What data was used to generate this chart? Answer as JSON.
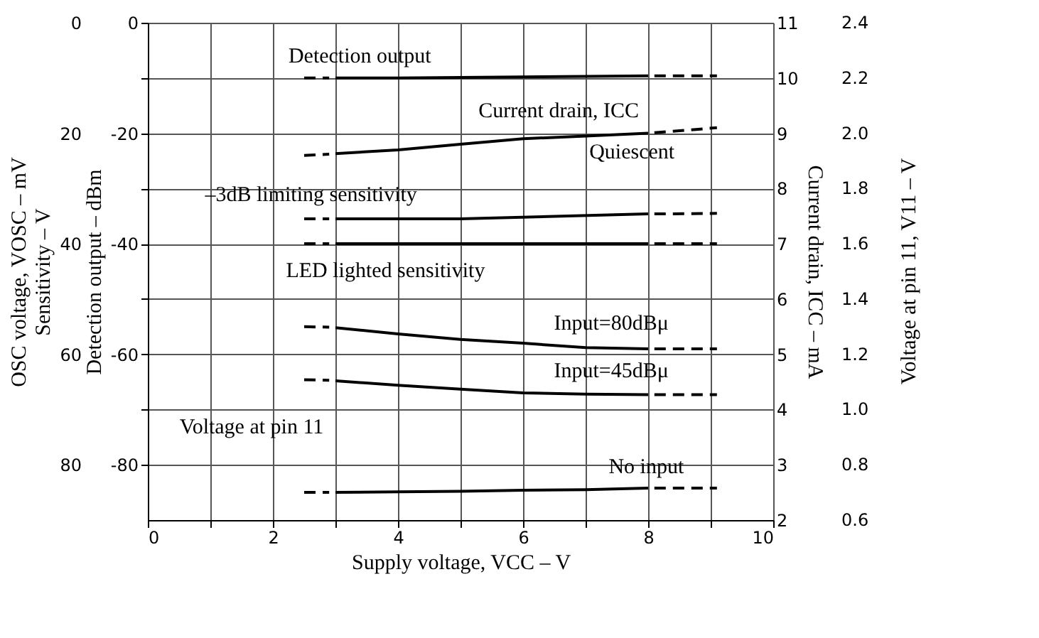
{
  "chart_data": {
    "type": "line",
    "xlabel": "Supply voltage, VCC – V",
    "ylabel": "Detection output – dBm",
    "y2label": "Current drain, ICC – mA",
    "y3label": "OSC voltage, VOSC – mV",
    "xlim": [
      0,
      10
    ],
    "xticks": [
      0,
      {
        "value": 1,
        "label": null
      },
      2,
      {
        "value": 3,
        "label": null
      },
      4,
      {
        "value": 5,
        "label": null
      },
      6,
      {
        "value": 7,
        "label": null
      },
      8,
      {
        "value": 9,
        "label": null
      },
      10
    ],
    "ylim": [
      -90,
      0
    ],
    "yticks": [
      0,
      {
        "value": -10,
        "label": null
      },
      -20,
      {
        "value": -30,
        "label": null
      },
      -40,
      {
        "value": -50,
        "label": null
      },
      -60,
      {
        "value": -70,
        "label": null
      },
      -80
    ],
    "y2lim": [
      2,
      11
    ],
    "y2ticks": [
      2,
      3,
      4,
      5,
      6,
      7,
      8,
      9,
      10,
      11
    ],
    "y3lim": [
      90,
      0
    ],
    "y3ticks": [
      0,
      20,
      40,
      60,
      80
    ],
    "grid": true,
    "series": [
      {
        "color": "#000000",
        "line_style": "solid",
        "x": [
          3,
          4,
          5,
          6,
          7,
          8
        ],
        "values": [
          -10,
          -10,
          -9.9,
          -9.8,
          -9.7,
          -9.6
        ]
      },
      {
        "color": "#000000",
        "line_style": "dashed",
        "x": [
          2.5,
          2.9
        ],
        "values": [
          -10,
          -10
        ]
      },
      {
        "color": "#000000",
        "line_style": "dashed",
        "x": [
          8.1,
          9.1
        ],
        "values": [
          -9.6,
          -9.6
        ]
      },
      {
        "color": "#000000",
        "line_style": "solid",
        "x": [
          3,
          4,
          5,
          6,
          7,
          8
        ],
        "values": [
          -23.7,
          -23,
          -22,
          -21,
          -20.5,
          -20
        ]
      },
      {
        "color": "#000000",
        "line_style": "dashed",
        "x": [
          2.5,
          2.9
        ],
        "values": [
          -24,
          -23.8
        ]
      },
      {
        "color": "#000000",
        "line_style": "dashed",
        "x": [
          8.1,
          9.1
        ],
        "values": [
          -19.9,
          -19
        ]
      },
      {
        "color": "#000000",
        "line_style": "solid",
        "x": [
          3,
          5,
          8
        ],
        "values": [
          -35.5,
          -35.5,
          -34.6
        ]
      },
      {
        "color": "#000000",
        "line_style": "dashed",
        "x": [
          2.5,
          2.9
        ],
        "values": [
          -35.5,
          -35.5
        ]
      },
      {
        "color": "#000000",
        "line_style": "dashed",
        "x": [
          8.1,
          9.1
        ],
        "values": [
          -34.6,
          -34.5
        ]
      },
      {
        "color": "#000000",
        "line_style": "solid",
        "x": [
          3,
          8
        ],
        "values": [
          -40,
          -40
        ]
      },
      {
        "color": "#000000",
        "line_style": "dashed",
        "x": [
          2.5,
          2.9
        ],
        "values": [
          -40,
          -40
        ]
      },
      {
        "color": "#000000",
        "line_style": "dashed",
        "x": [
          8.1,
          9.1
        ],
        "values": [
          -40,
          -40
        ]
      },
      {
        "color": "#000000",
        "line_style": "solid",
        "x": [
          3,
          4,
          5,
          6,
          7,
          8
        ],
        "values": [
          -55.2,
          -56.3,
          -57.3,
          -58,
          -58.8,
          -59
        ]
      },
      {
        "color": "#000000",
        "line_style": "dashed",
        "x": [
          2.5,
          2.9
        ],
        "values": [
          -55,
          -55.1
        ]
      },
      {
        "color": "#000000",
        "line_style": "dashed",
        "x": [
          8.1,
          9.1
        ],
        "values": [
          -59,
          -59
        ]
      },
      {
        "color": "#000000",
        "line_style": "solid",
        "x": [
          3,
          4,
          5,
          6,
          7,
          8
        ],
        "values": [
          -64.8,
          -65.6,
          -66.3,
          -67,
          -67.2,
          -67.3
        ]
      },
      {
        "color": "#000000",
        "line_style": "dashed",
        "x": [
          2.5,
          2.9
        ],
        "values": [
          -64.6,
          -64.7
        ]
      },
      {
        "color": "#000000",
        "line_style": "dashed",
        "x": [
          8.1,
          9.1
        ],
        "values": [
          -67.3,
          -67.3
        ]
      },
      {
        "color": "#000000",
        "line_style": "solid",
        "x": [
          3,
          4,
          5,
          6,
          7,
          8
        ],
        "values": [
          -85,
          -84.9,
          -84.8,
          -84.6,
          -84.5,
          -84.2
        ]
      },
      {
        "color": "#000000",
        "line_style": "dashed",
        "x": [
          2.5,
          2.9
        ],
        "values": [
          -85,
          -85
        ]
      },
      {
        "color": "#000000",
        "line_style": "dashed",
        "x": [
          8.1,
          9.1
        ],
        "values": [
          -84.2,
          -84.2
        ]
      }
    ],
    "annotations": [
      "Sensitivity – V",
      "Voltage at pin 11, V11 – V",
      "Detection output",
      "Current drain, ICC",
      "Quiescent",
      "–3dB limiting sensitivity",
      "LED lighted sensitivity",
      "Input=80dBμ",
      "Input=45dBμ",
      "Voltage at pin 11",
      "No input",
      "0.6",
      "0.8",
      "1.0",
      "1.2",
      "1.4",
      "1.6",
      "1.8",
      "2.0",
      "2.2",
      "2.4"
    ]
  }
}
